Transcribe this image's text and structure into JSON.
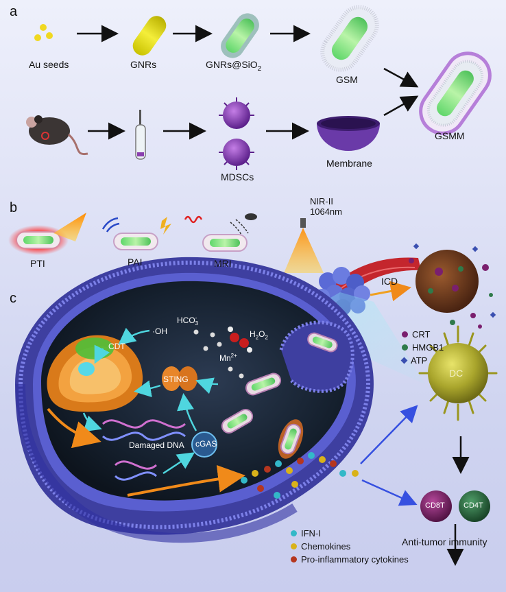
{
  "panels": {
    "a": "a",
    "b": "b",
    "c": "c"
  },
  "synthesis": {
    "au_seeds": "Au seeds",
    "gnrs": "GNRs",
    "gnrs_sio2_main": "GNRs@SiO",
    "gnrs_sio2_sub": "2",
    "gsm": "GSM",
    "membrane": "Membrane",
    "mdscs": "MDSCs",
    "gsmm": "GSMM"
  },
  "imaging": {
    "pti": "PTI",
    "pai": "PAI",
    "mri": "MRI"
  },
  "therapy": {
    "nir_line1": "NIR-II",
    "nir_line2": "1064nm",
    "icd": "ICD",
    "dc": "DC",
    "cd8t": "CD8T",
    "cd4t": "CD4T",
    "anti_tumor": "Anti-tumor immunity"
  },
  "icd_legend": [
    {
      "label": "CRT",
      "color": "#7a1f6e",
      "shape": "dot"
    },
    {
      "label": "HMGB1",
      "color": "#2f7a4a",
      "shape": "dot"
    },
    {
      "label": "ATP",
      "color": "#3a4fb0",
      "shape": "diamond"
    }
  ],
  "cell": {
    "oh": "·OH",
    "hco3_main": "HCO",
    "hco3_sub": "3",
    "hco3_sup": "-",
    "h2o2_h": "H",
    "h2o2_sub": "2",
    "h2o2_o": "O",
    "h2o2_sub2": "2",
    "mn_main": "Mn",
    "mn_sup": "2+",
    "cdt": "CDT",
    "sting": "STING",
    "damaged_dna": "Damaged DNA",
    "cgas": "cGAS"
  },
  "cytokine_legend": [
    {
      "label": "IFN-I",
      "color": "#33b8c8"
    },
    {
      "label": "Chemokines",
      "color": "#d9b21a"
    },
    {
      "label": "Pro-inflammatory cytokines",
      "color": "#b5361f"
    }
  ]
}
